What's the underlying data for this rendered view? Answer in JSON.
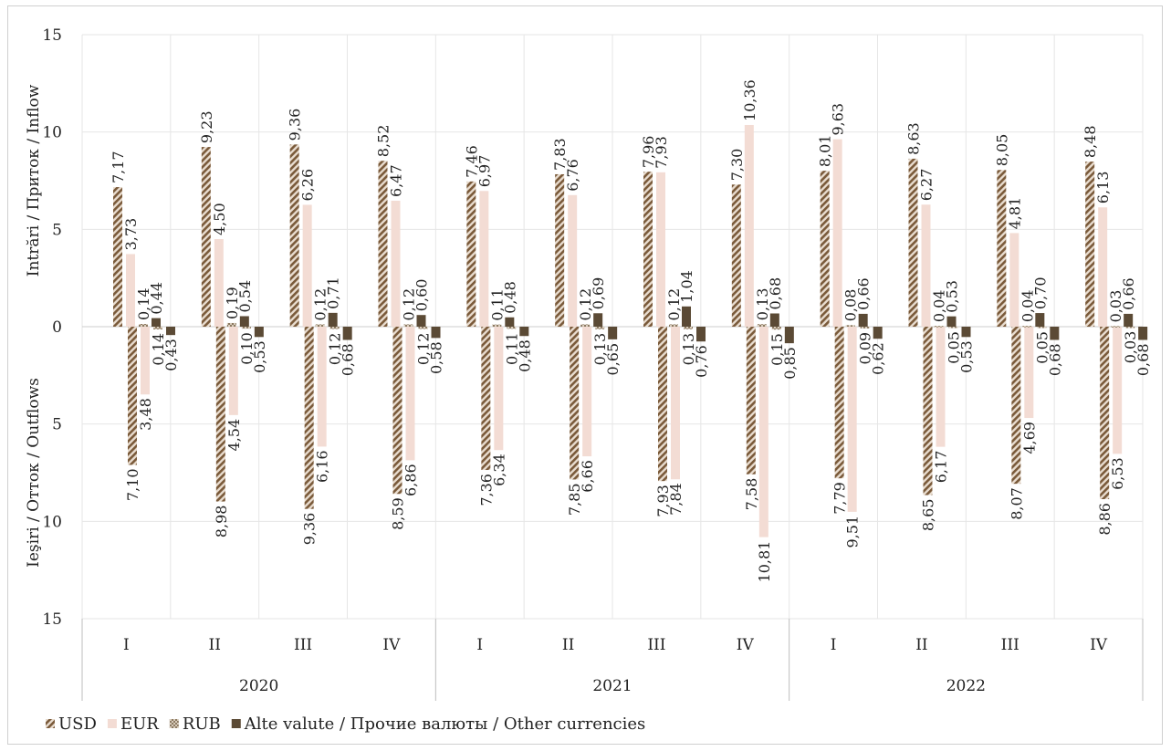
{
  "chart_data": {
    "type": "bar",
    "y_axis": {
      "ticks": [
        "15",
        "10",
        "5",
        "0",
        "5",
        "10",
        "15"
      ],
      "label_inflow": "Intrări / Приток / Inflow",
      "label_outflow": "Ieşiri / Отток / Outflows",
      "ylim": [
        -15,
        15
      ]
    },
    "years": [
      "2020",
      "2021",
      "2022"
    ],
    "quarters": [
      "I",
      "II",
      "III",
      "IV",
      "I",
      "II",
      "III",
      "IV",
      "I",
      "II",
      "III",
      "IV"
    ],
    "series": [
      {
        "name": "USD",
        "color": "#8a6a48",
        "pattern": "hatch",
        "inflow_labels": [
          "7,17",
          "9,23",
          "9,36",
          "8,52",
          "7,46",
          "7,83",
          "7,96",
          "7,30",
          "8,01",
          "8,63",
          "8,05",
          "8,48"
        ],
        "inflow": [
          7.17,
          9.23,
          9.36,
          8.52,
          7.46,
          7.83,
          7.96,
          7.3,
          8.01,
          8.63,
          8.05,
          8.48
        ],
        "outflow_labels": [
          "7,10",
          "8,98",
          "9,36",
          "8,59",
          "7,36",
          "7,85",
          "7,93",
          "7,58",
          "7,79",
          "8,65",
          "8,07",
          "8,86"
        ],
        "outflow": [
          7.1,
          8.98,
          9.36,
          8.59,
          7.36,
          7.85,
          7.93,
          7.58,
          7.79,
          8.65,
          8.07,
          8.86
        ]
      },
      {
        "name": "EUR",
        "color": "#f3dcd4",
        "pattern": "solid",
        "inflow_labels": [
          "3,73",
          "4,50",
          "6,26",
          "6,47",
          "6,97",
          "6,76",
          "7,93",
          "10,36",
          "9,63",
          "6,27",
          "4,81",
          "6,13"
        ],
        "inflow": [
          3.73,
          4.5,
          6.26,
          6.47,
          6.97,
          6.76,
          7.93,
          10.36,
          9.63,
          6.27,
          4.81,
          6.13
        ],
        "outflow_labels": [
          "3,48",
          "4,54",
          "6,16",
          "6,86",
          "6,34",
          "6,66",
          "7,84",
          "10,81",
          "9,51",
          "6,17",
          "4,69",
          "6,53"
        ],
        "outflow": [
          3.48,
          4.54,
          6.16,
          6.86,
          6.34,
          6.66,
          7.84,
          10.81,
          9.51,
          6.17,
          4.69,
          6.53
        ]
      },
      {
        "name": "RUB",
        "color": "#b8a690",
        "pattern": "grid",
        "inflow_labels": [
          "0,14",
          "0,19",
          "0,12",
          "0,12",
          "0,11",
          "0,12",
          "0,12",
          "0,13",
          "0,08",
          "0,04",
          "0,04",
          "0,03"
        ],
        "inflow": [
          0.14,
          0.19,
          0.12,
          0.12,
          0.11,
          0.12,
          0.12,
          0.13,
          0.08,
          0.04,
          0.04,
          0.03
        ],
        "outflow_labels": [
          "0,14",
          "0,10",
          "0,12",
          "0,12",
          "0,11",
          "0,13",
          "0,13",
          "0,15",
          "0,09",
          "0,05",
          "0,05",
          "0,03"
        ],
        "outflow": [
          0.14,
          0.1,
          0.12,
          0.12,
          0.11,
          0.13,
          0.13,
          0.15,
          0.09,
          0.05,
          0.05,
          0.03
        ]
      },
      {
        "name": "Alte valute / Прочие валюты / Other currencies",
        "color": "#5b4a35",
        "pattern": "solid",
        "inflow_labels": [
          "0,44",
          "0,54",
          "0,71",
          "0,60",
          "0,48",
          "0,69",
          "1,04",
          "0,68",
          "0,66",
          "0,53",
          "0,70",
          "0,66"
        ],
        "inflow": [
          0.44,
          0.54,
          0.71,
          0.6,
          0.48,
          0.69,
          1.04,
          0.68,
          0.66,
          0.53,
          0.7,
          0.66
        ],
        "outflow_labels": [
          "0,43",
          "0,53",
          "0,68",
          "0,58",
          "0,48",
          "0,65",
          "0,76",
          "0,85",
          "0,62",
          "0,53",
          "0,68",
          "0,68"
        ],
        "outflow": [
          0.43,
          0.53,
          0.68,
          0.58,
          0.48,
          0.65,
          0.76,
          0.85,
          0.62,
          0.53,
          0.68,
          0.68
        ]
      }
    ],
    "legend": [
      "USD",
      "EUR",
      "RUB",
      "Alte valute / Прочие валюты / Other currencies"
    ],
    "legend_position": "bottom-left",
    "grid": true
  }
}
